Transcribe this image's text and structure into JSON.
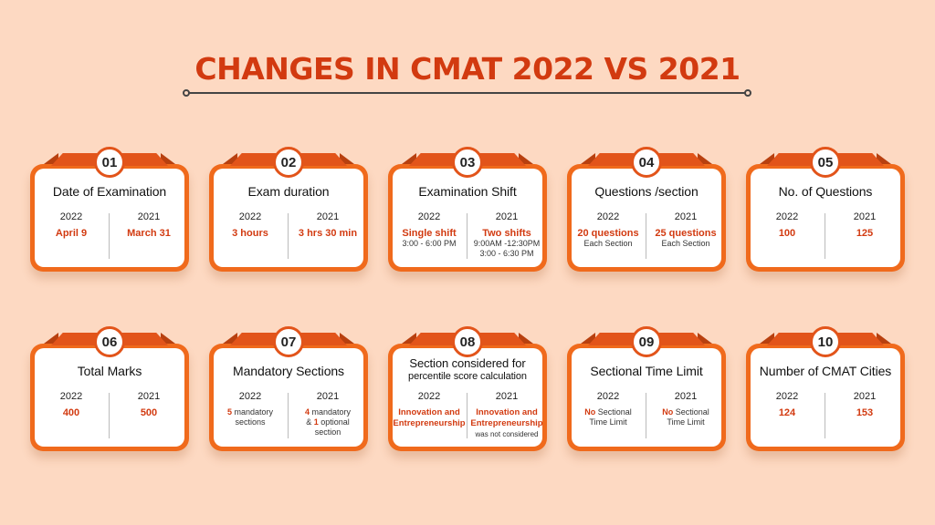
{
  "title": "CHANGES IN CMAT 2022 VS 2021",
  "cards": [
    {
      "num": "01",
      "heading": "Date of Examination",
      "y1": "2022",
      "y2": "2021",
      "v1": "April 9",
      "v2": "March 31"
    },
    {
      "num": "02",
      "heading": "Exam duration",
      "y1": "2022",
      "y2": "2021",
      "v1": "3 hours",
      "v2": "3 hrs 30 min"
    },
    {
      "num": "03",
      "heading": "Examination Shift",
      "y1": "2022",
      "y2": "2021",
      "v1": "Single shift",
      "n1": "3:00 - 6:00 PM",
      "v2": "Two shifts",
      "n2a": "9:00AM -12:30PM",
      "n2b": "3:00 - 6:30 PM"
    },
    {
      "num": "04",
      "heading": "Questions /section",
      "y1": "2022",
      "y2": "2021",
      "v1": "20 questions",
      "n1": "Each Section",
      "v2": "25 questions",
      "n2": "Each Section"
    },
    {
      "num": "05",
      "heading": "No. of Questions",
      "y1": "2022",
      "y2": "2021",
      "v1": "100",
      "v2": "125"
    },
    {
      "num": "06",
      "heading": "Total Marks",
      "y1": "2022",
      "y2": "2021",
      "v1": "400",
      "v2": "500"
    },
    {
      "num": "07",
      "heading": "Mandatory Sections",
      "y1": "2022",
      "y2": "2021",
      "v1num": "5",
      "v1txt": "mandatory",
      "n1": "sections",
      "v2num": "4",
      "v2txt": "mandatory",
      "n2amp": "&",
      "n2num": "1",
      "n2txt": "optional",
      "n2c": "section"
    },
    {
      "num": "08",
      "heading": "Section considered for",
      "subheading": "percentile score calculation",
      "y1": "2022",
      "y2": "2021",
      "v1a": "Innovation and",
      "v1b": "Entrepreneurship",
      "v2a": "Innovation and",
      "v2b": "Entrepreneurship",
      "n2": "was not considered"
    },
    {
      "num": "09",
      "heading": "Sectional Time Limit",
      "y1": "2022",
      "y2": "2021",
      "v1num": "No",
      "v1txt": "Sectional",
      "n1": "Time Limit",
      "v2num": "No",
      "v2txt": "Sectional",
      "n2": "Time Limit"
    },
    {
      "num": "10",
      "heading": "Number of CMAT Cities",
      "y1": "2022",
      "y2": "2021",
      "v1": "124",
      "v2": "153"
    }
  ]
}
